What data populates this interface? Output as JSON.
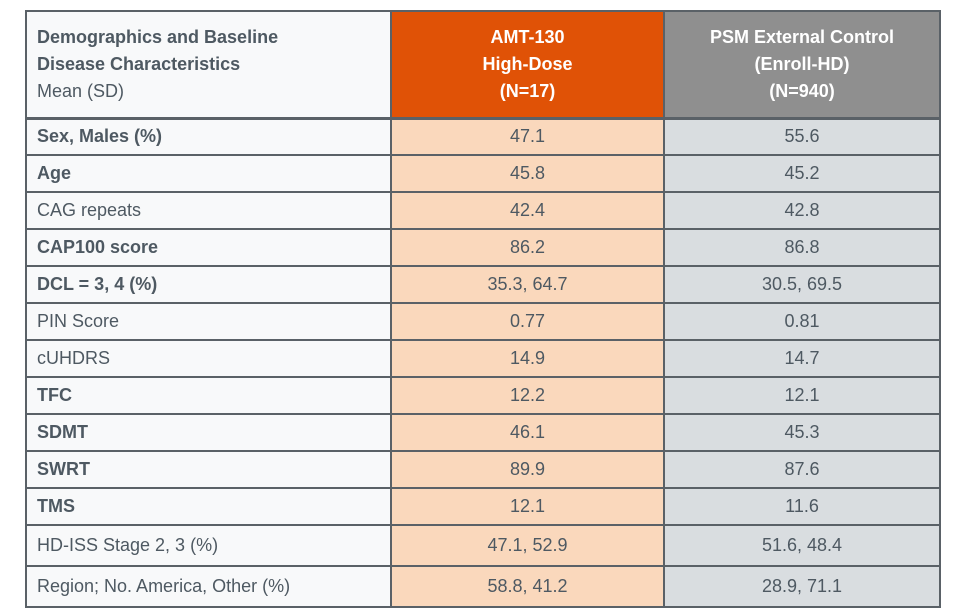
{
  "colors": {
    "amt_header_orange": "#E05206",
    "amt_cell_peach": "#FAD8BC",
    "psm_header_gray": "#8F8F8F",
    "psm_cell_gray": "#D9DDE0",
    "label_column_bg": "#F8F9FA",
    "border_gray": "#5A6167",
    "text_slate": "#4E5962",
    "header_text_white": "#FFFFFF"
  },
  "table": {
    "header": {
      "characteristics": {
        "line1": "Demographics and Baseline",
        "line2": "Disease Characteristics",
        "line3": "Mean (SD)"
      },
      "amt": {
        "line1": "AMT-130",
        "line2": "High-Dose",
        "line3": "(N=17)"
      },
      "psm": {
        "line1": "PSM External Control",
        "line2": "(Enroll-HD)",
        "line3": "(N=940)"
      }
    },
    "rows": [
      {
        "label": "Sex, Males (%)",
        "bold": true,
        "amt": "47.1",
        "psm": "55.6"
      },
      {
        "label": "Age",
        "bold": true,
        "amt": "45.8",
        "psm": "45.2"
      },
      {
        "label": "CAG repeats",
        "bold": false,
        "amt": "42.4",
        "psm": "42.8"
      },
      {
        "label": "CAP100 score",
        "bold": true,
        "amt": "86.2",
        "psm": "86.8"
      },
      {
        "label": "DCL = 3, 4 (%)",
        "bold": true,
        "amt": "35.3, 64.7",
        "psm": "30.5, 69.5"
      },
      {
        "label": "PIN Score",
        "bold": false,
        "amt": "0.77",
        "psm": "0.81"
      },
      {
        "label": "cUHDRS",
        "bold": false,
        "amt": "14.9",
        "psm": "14.7"
      },
      {
        "label": "TFC",
        "bold": true,
        "amt": "12.2",
        "psm": "12.1"
      },
      {
        "label": "SDMT",
        "bold": true,
        "amt": "46.1",
        "psm": "45.3"
      },
      {
        "label": "SWRT",
        "bold": true,
        "amt": "89.9",
        "psm": "87.6"
      },
      {
        "label": "TMS",
        "bold": true,
        "amt": "12.1",
        "psm": "11.6"
      },
      {
        "label": "HD-ISS Stage 2, 3 (%)",
        "bold": false,
        "amt": "47.1, 52.9",
        "psm": "51.6, 48.4"
      },
      {
        "label": "Region; No. America, Other (%)",
        "bold": false,
        "amt": "58.8, 41.2",
        "psm": "28.9, 71.1"
      }
    ]
  },
  "chart_data": {
    "type": "table",
    "title": "Demographics and Baseline Disease Characteristics, Mean (SD)",
    "columns": [
      "Demographics and Baseline Disease Characteristics Mean (SD)",
      "AMT-130 High-Dose (N=17)",
      "PSM External Control (Enroll-HD) (N=940)"
    ],
    "rows": [
      [
        "Sex, Males (%)",
        "47.1",
        "55.6"
      ],
      [
        "Age",
        "45.8",
        "45.2"
      ],
      [
        "CAG repeats",
        "42.4",
        "42.8"
      ],
      [
        "CAP100 score",
        "86.2",
        "86.8"
      ],
      [
        "DCL = 3, 4 (%)",
        "35.3, 64.7",
        "30.5, 69.5"
      ],
      [
        "PIN Score",
        "0.77",
        "0.81"
      ],
      [
        "cUHDRS",
        "14.9",
        "14.7"
      ],
      [
        "TFC",
        "12.2",
        "12.1"
      ],
      [
        "SDMT",
        "46.1",
        "45.3"
      ],
      [
        "SWRT",
        "89.9",
        "87.6"
      ],
      [
        "TMS",
        "12.1",
        "11.6"
      ],
      [
        "HD-ISS Stage 2, 3 (%)",
        "47.1, 52.9",
        "51.6, 48.4"
      ],
      [
        "Region; No. America, Other (%)",
        "58.8, 41.2",
        "28.9, 71.1"
      ]
    ]
  }
}
